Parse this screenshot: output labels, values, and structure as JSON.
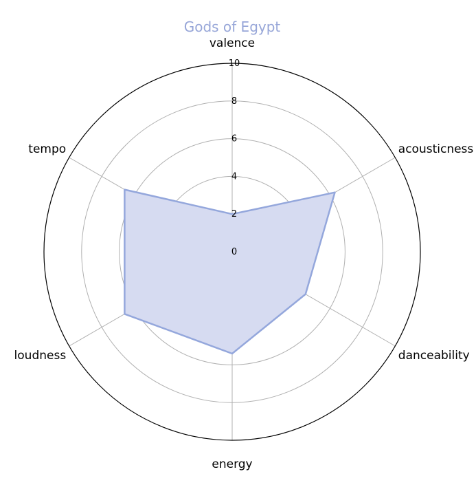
{
  "chart_data": {
    "type": "radar",
    "title": "Gods of Egypt",
    "axes": [
      "valence",
      "acousticness",
      "danceability",
      "energy",
      "loudness",
      "tempo"
    ],
    "series": [
      {
        "values": [
          2,
          6.3,
          4.5,
          5.4,
          6.6,
          6.6
        ]
      }
    ],
    "rlim": [
      0,
      10
    ],
    "rticks": [
      "0",
      "2",
      "4",
      "6",
      "8",
      "10"
    ],
    "grid": true,
    "colors": {
      "title": "#97a6d8",
      "series_line": "#94a7dc",
      "series_fill": "#d6dbf1"
    }
  }
}
